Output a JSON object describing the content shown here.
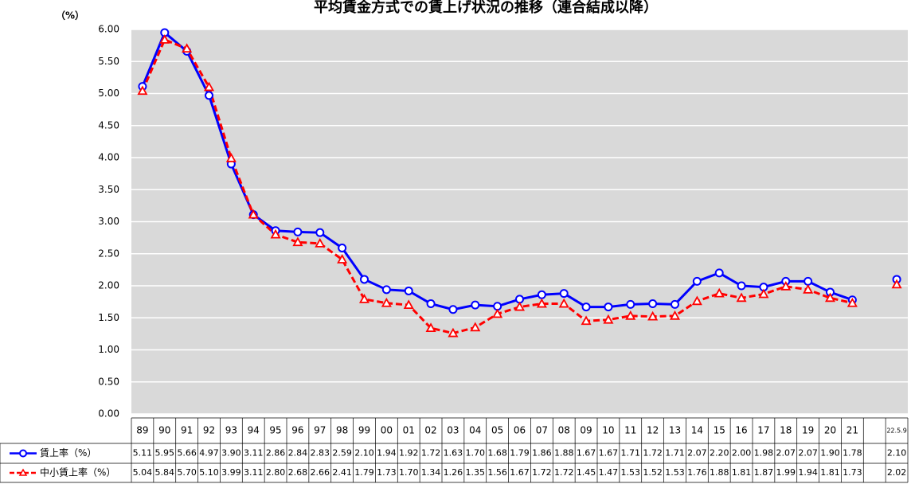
{
  "chart_data": {
    "type": "line",
    "title": "平均賃金方式での賃上げ状況の推移（連合結成以降）",
    "y_unit": "（%）",
    "categories": [
      "89",
      "90",
      "91",
      "92",
      "93",
      "94",
      "95",
      "96",
      "97",
      "98",
      "99",
      "00",
      "01",
      "02",
      "03",
      "04",
      "05",
      "06",
      "07",
      "08",
      "09",
      "10",
      "11",
      "12",
      "13",
      "14",
      "15",
      "16",
      "17",
      "18",
      "19",
      "20",
      "21",
      null,
      "22.5.9"
    ],
    "series": [
      {
        "name": "賃上率（%）",
        "color": "#0000ff",
        "marker": "circle",
        "dashed": false,
        "values": [
          5.11,
          5.95,
          5.66,
          4.97,
          3.9,
          3.11,
          2.86,
          2.84,
          2.83,
          2.59,
          2.1,
          1.94,
          1.92,
          1.72,
          1.63,
          1.7,
          1.68,
          1.79,
          1.86,
          1.88,
          1.67,
          1.67,
          1.71,
          1.72,
          1.71,
          2.07,
          2.2,
          2.0,
          1.98,
          2.07,
          2.07,
          1.9,
          1.78,
          null,
          2.1
        ],
        "value_labels": [
          "5.11",
          "5.95",
          "5.66",
          "4.97",
          "3.90",
          "3.11",
          "2.86",
          "2.84",
          "2.83",
          "2.59",
          "2.10",
          "1.94",
          "1.92",
          "1.72",
          "1.63",
          "1.70",
          "1.68",
          "1.79",
          "1.86",
          "1.88",
          "1.67",
          "1.67",
          "1.71",
          "1.72",
          "1.71",
          "2.07",
          "2.20",
          "2.00",
          "1.98",
          "2.07",
          "2.07",
          "1.90",
          "1.78",
          null,
          "2.10"
        ]
      },
      {
        "name": "中小賃上率（%）",
        "color": "#ff0000",
        "marker": "triangle",
        "dashed": true,
        "values": [
          5.04,
          5.84,
          5.7,
          5.1,
          3.99,
          3.11,
          2.8,
          2.68,
          2.66,
          2.41,
          1.79,
          1.73,
          1.7,
          1.34,
          1.26,
          1.35,
          1.56,
          1.67,
          1.72,
          1.72,
          1.45,
          1.47,
          1.53,
          1.52,
          1.53,
          1.76,
          1.88,
          1.81,
          1.87,
          1.99,
          1.94,
          1.81,
          1.73,
          null,
          2.02
        ],
        "value_labels": [
          "5.04",
          "5.84",
          "5.70",
          "5.10",
          "3.99",
          "3.11",
          "2.80",
          "2.68",
          "2.66",
          "2.41",
          "1.79",
          "1.73",
          "1.70",
          "1.34",
          "1.26",
          "1.35",
          "1.56",
          "1.67",
          "1.72",
          "1.72",
          "1.45",
          "1.47",
          "1.53",
          "1.52",
          "1.53",
          "1.76",
          "1.88",
          "1.81",
          "1.87",
          "1.99",
          "1.94",
          "1.81",
          "1.73",
          null,
          "2.02"
        ]
      }
    ],
    "ylim": [
      0,
      6
    ],
    "yticks": [
      {
        "value": 0,
        "label": "0.00"
      },
      {
        "value": 0.5,
        "label": "0.50"
      },
      {
        "value": 1,
        "label": "1.00"
      },
      {
        "value": 1.5,
        "label": "1.50"
      },
      {
        "value": 2,
        "label": "2.00"
      },
      {
        "value": 2.5,
        "label": "2.50"
      },
      {
        "value": 3,
        "label": "3.00"
      },
      {
        "value": 3.5,
        "label": "3.50"
      },
      {
        "value": 4,
        "label": "4.00"
      },
      {
        "value": 4.5,
        "label": "4.50"
      },
      {
        "value": 5,
        "label": "5.00"
      },
      {
        "value": 5.5,
        "label": "5.50"
      },
      {
        "value": 6,
        "label": "6.00"
      }
    ],
    "grid": true,
    "plot_background": "#d9d9d9"
  }
}
